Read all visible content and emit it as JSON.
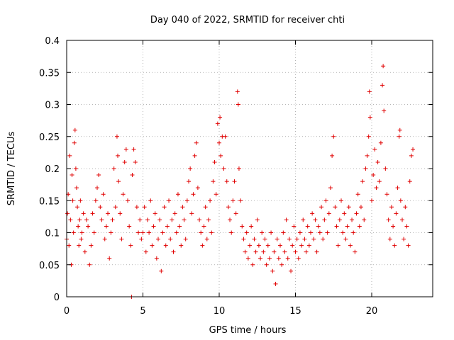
{
  "chart_data": {
    "type": "scatter",
    "title": "Day 040 of 2022, SRMTID for receiver chti",
    "xlabel": "GPS time / hours",
    "ylabel": "SRMTID / TECUs",
    "xlim": [
      0,
      24
    ],
    "ylim": [
      0,
      0.4
    ],
    "x_ticks": [
      "0",
      "5",
      "10",
      "15",
      "20"
    ],
    "y_ticks": [
      "0",
      "0.05",
      "0.1",
      "0.15",
      "0.2",
      "0.25",
      "0.3",
      "0.35",
      "0.4"
    ],
    "grid": true,
    "marker": "plus",
    "colors": {
      "series": "#e00000",
      "grid": "#a0a0a0",
      "axis": "#000000"
    },
    "series": [
      {
        "points": [
          [
            0.0,
            0.09
          ],
          [
            0.05,
            0.13
          ],
          [
            0.1,
            0.16
          ],
          [
            0.15,
            0.08
          ],
          [
            0.2,
            0.22
          ],
          [
            0.25,
            0.12
          ],
          [
            0.3,
            0.05
          ],
          [
            0.35,
            0.19
          ],
          [
            0.4,
            0.15
          ],
          [
            0.45,
            0.1
          ],
          [
            0.5,
            0.24
          ],
          [
            0.55,
            0.26
          ],
          [
            0.6,
            0.2
          ],
          [
            0.65,
            0.17
          ],
          [
            0.7,
            0.14
          ],
          [
            0.75,
            0.11
          ],
          [
            0.8,
            0.08
          ],
          [
            0.85,
            0.12
          ],
          [
            0.9,
            0.15
          ],
          [
            0.95,
            0.09
          ],
          [
            1.0,
            0.1
          ],
          [
            1.1,
            0.13
          ],
          [
            1.2,
            0.07
          ],
          [
            1.3,
            0.12
          ],
          [
            1.4,
            0.11
          ],
          [
            1.5,
            0.05
          ],
          [
            1.6,
            0.08
          ],
          [
            1.7,
            0.13
          ],
          [
            1.8,
            0.1
          ],
          [
            1.9,
            0.15
          ],
          [
            2.0,
            0.17
          ],
          [
            2.1,
            0.19
          ],
          [
            2.2,
            0.14
          ],
          [
            2.3,
            0.12
          ],
          [
            2.4,
            0.16
          ],
          [
            2.5,
            0.09
          ],
          [
            2.6,
            0.11
          ],
          [
            2.7,
            0.13
          ],
          [
            2.8,
            0.06
          ],
          [
            2.9,
            0.1
          ],
          [
            3.0,
            0.12
          ],
          [
            3.1,
            0.2
          ],
          [
            3.2,
            0.14
          ],
          [
            3.3,
            0.25
          ],
          [
            3.35,
            0.22
          ],
          [
            3.4,
            0.18
          ],
          [
            3.5,
            0.13
          ],
          [
            3.6,
            0.09
          ],
          [
            3.7,
            0.16
          ],
          [
            3.8,
            0.21
          ],
          [
            3.9,
            0.23
          ],
          [
            4.0,
            0.15
          ],
          [
            4.1,
            0.11
          ],
          [
            4.2,
            0.08
          ],
          [
            4.25,
            0.0
          ],
          [
            4.3,
            0.19
          ],
          [
            4.4,
            0.23
          ],
          [
            4.5,
            0.21
          ],
          [
            4.6,
            0.14
          ],
          [
            4.7,
            0.1
          ],
          [
            4.8,
            0.12
          ],
          [
            4.9,
            0.09
          ],
          [
            5.0,
            0.1
          ],
          [
            5.1,
            0.14
          ],
          [
            5.2,
            0.07
          ],
          [
            5.3,
            0.12
          ],
          [
            5.4,
            0.1
          ],
          [
            5.5,
            0.15
          ],
          [
            5.6,
            0.08
          ],
          [
            5.7,
            0.11
          ],
          [
            5.8,
            0.13
          ],
          [
            5.9,
            0.06
          ],
          [
            6.0,
            0.09
          ],
          [
            6.1,
            0.12
          ],
          [
            6.2,
            0.04
          ],
          [
            6.3,
            0.1
          ],
          [
            6.4,
            0.14
          ],
          [
            6.5,
            0.08
          ],
          [
            6.6,
            0.11
          ],
          [
            6.7,
            0.15
          ],
          [
            6.8,
            0.09
          ],
          [
            6.9,
            0.12
          ],
          [
            7.0,
            0.07
          ],
          [
            7.1,
            0.13
          ],
          [
            7.2,
            0.1
          ],
          [
            7.3,
            0.16
          ],
          [
            7.4,
            0.11
          ],
          [
            7.5,
            0.08
          ],
          [
            7.6,
            0.14
          ],
          [
            7.7,
            0.12
          ],
          [
            7.8,
            0.09
          ],
          [
            7.9,
            0.15
          ],
          [
            8.0,
            0.18
          ],
          [
            8.1,
            0.2
          ],
          [
            8.2,
            0.13
          ],
          [
            8.3,
            0.16
          ],
          [
            8.4,
            0.22
          ],
          [
            8.5,
            0.24
          ],
          [
            8.6,
            0.17
          ],
          [
            8.7,
            0.12
          ],
          [
            8.8,
            0.1
          ],
          [
            8.9,
            0.08
          ],
          [
            9.0,
            0.11
          ],
          [
            9.1,
            0.14
          ],
          [
            9.2,
            0.09
          ],
          [
            9.3,
            0.12
          ],
          [
            9.4,
            0.15
          ],
          [
            9.5,
            0.1
          ],
          [
            9.6,
            0.18
          ],
          [
            9.7,
            0.21
          ],
          [
            9.8,
            0.16
          ],
          [
            9.9,
            0.27
          ],
          [
            10.0,
            0.24
          ],
          [
            10.05,
            0.28
          ],
          [
            10.1,
            0.22
          ],
          [
            10.2,
            0.25
          ],
          [
            10.3,
            0.2
          ],
          [
            10.4,
            0.25
          ],
          [
            10.5,
            0.18
          ],
          [
            10.6,
            0.14
          ],
          [
            10.7,
            0.12
          ],
          [
            10.8,
            0.1
          ],
          [
            10.9,
            0.15
          ],
          [
            11.0,
            0.18
          ],
          [
            11.1,
            0.13
          ],
          [
            11.2,
            0.32
          ],
          [
            11.25,
            0.3
          ],
          [
            11.3,
            0.2
          ],
          [
            11.4,
            0.15
          ],
          [
            11.5,
            0.11
          ],
          [
            11.6,
            0.09
          ],
          [
            11.7,
            0.07
          ],
          [
            11.8,
            0.1
          ],
          [
            11.9,
            0.06
          ],
          [
            12.0,
            0.08
          ],
          [
            12.1,
            0.11
          ],
          [
            12.2,
            0.05
          ],
          [
            12.3,
            0.09
          ],
          [
            12.4,
            0.07
          ],
          [
            12.5,
            0.12
          ],
          [
            12.6,
            0.08
          ],
          [
            12.7,
            0.06
          ],
          [
            12.8,
            0.1
          ],
          [
            12.9,
            0.07
          ],
          [
            13.0,
            0.09
          ],
          [
            13.1,
            0.05
          ],
          [
            13.2,
            0.08
          ],
          [
            13.3,
            0.06
          ],
          [
            13.4,
            0.1
          ],
          [
            13.5,
            0.04
          ],
          [
            13.6,
            0.07
          ],
          [
            13.7,
            0.02
          ],
          [
            13.8,
            0.09
          ],
          [
            13.9,
            0.06
          ],
          [
            14.0,
            0.08
          ],
          [
            14.1,
            0.05
          ],
          [
            14.2,
            0.1
          ],
          [
            14.3,
            0.07
          ],
          [
            14.4,
            0.12
          ],
          [
            14.5,
            0.06
          ],
          [
            14.6,
            0.09
          ],
          [
            14.7,
            0.04
          ],
          [
            14.8,
            0.08
          ],
          [
            14.9,
            0.11
          ],
          [
            15.0,
            0.07
          ],
          [
            15.1,
            0.09
          ],
          [
            15.2,
            0.06
          ],
          [
            15.3,
            0.1
          ],
          [
            15.4,
            0.08
          ],
          [
            15.5,
            0.12
          ],
          [
            15.6,
            0.09
          ],
          [
            15.7,
            0.07
          ],
          [
            15.8,
            0.11
          ],
          [
            15.9,
            0.08
          ],
          [
            16.0,
            0.1
          ],
          [
            16.1,
            0.13
          ],
          [
            16.2,
            0.09
          ],
          [
            16.3,
            0.12
          ],
          [
            16.4,
            0.07
          ],
          [
            16.5,
            0.11
          ],
          [
            16.6,
            0.1
          ],
          [
            16.7,
            0.14
          ],
          [
            16.8,
            0.09
          ],
          [
            16.9,
            0.12
          ],
          [
            17.0,
            0.15
          ],
          [
            17.1,
            0.1
          ],
          [
            17.2,
            0.13
          ],
          [
            17.3,
            0.17
          ],
          [
            17.4,
            0.22
          ],
          [
            17.5,
            0.25
          ],
          [
            17.6,
            0.14
          ],
          [
            17.7,
            0.11
          ],
          [
            17.8,
            0.08
          ],
          [
            17.9,
            0.12
          ],
          [
            18.0,
            0.15
          ],
          [
            18.1,
            0.1
          ],
          [
            18.2,
            0.13
          ],
          [
            18.3,
            0.09
          ],
          [
            18.4,
            0.11
          ],
          [
            18.5,
            0.14
          ],
          [
            18.6,
            0.08
          ],
          [
            18.7,
            0.12
          ],
          [
            18.8,
            0.1
          ],
          [
            18.9,
            0.07
          ],
          [
            19.0,
            0.13
          ],
          [
            19.1,
            0.16
          ],
          [
            19.2,
            0.11
          ],
          [
            19.3,
            0.14
          ],
          [
            19.4,
            0.18
          ],
          [
            19.5,
            0.12
          ],
          [
            19.6,
            0.2
          ],
          [
            19.7,
            0.22
          ],
          [
            19.8,
            0.25
          ],
          [
            19.85,
            0.32
          ],
          [
            19.9,
            0.28
          ],
          [
            20.0,
            0.15
          ],
          [
            20.1,
            0.19
          ],
          [
            20.2,
            0.23
          ],
          [
            20.3,
            0.17
          ],
          [
            20.4,
            0.21
          ],
          [
            20.5,
            0.18
          ],
          [
            20.6,
            0.24
          ],
          [
            20.7,
            0.33
          ],
          [
            20.75,
            0.36
          ],
          [
            20.8,
            0.29
          ],
          [
            20.9,
            0.2
          ],
          [
            21.0,
            0.16
          ],
          [
            21.1,
            0.12
          ],
          [
            21.2,
            0.09
          ],
          [
            21.3,
            0.14
          ],
          [
            21.4,
            0.11
          ],
          [
            21.5,
            0.08
          ],
          [
            21.6,
            0.13
          ],
          [
            21.7,
            0.17
          ],
          [
            21.8,
            0.25
          ],
          [
            21.85,
            0.26
          ],
          [
            21.9,
            0.15
          ],
          [
            22.0,
            0.12
          ],
          [
            22.1,
            0.09
          ],
          [
            22.2,
            0.14
          ],
          [
            22.3,
            0.11
          ],
          [
            22.4,
            0.08
          ],
          [
            22.5,
            0.18
          ],
          [
            22.6,
            0.22
          ],
          [
            22.7,
            0.23
          ]
        ]
      }
    ]
  }
}
